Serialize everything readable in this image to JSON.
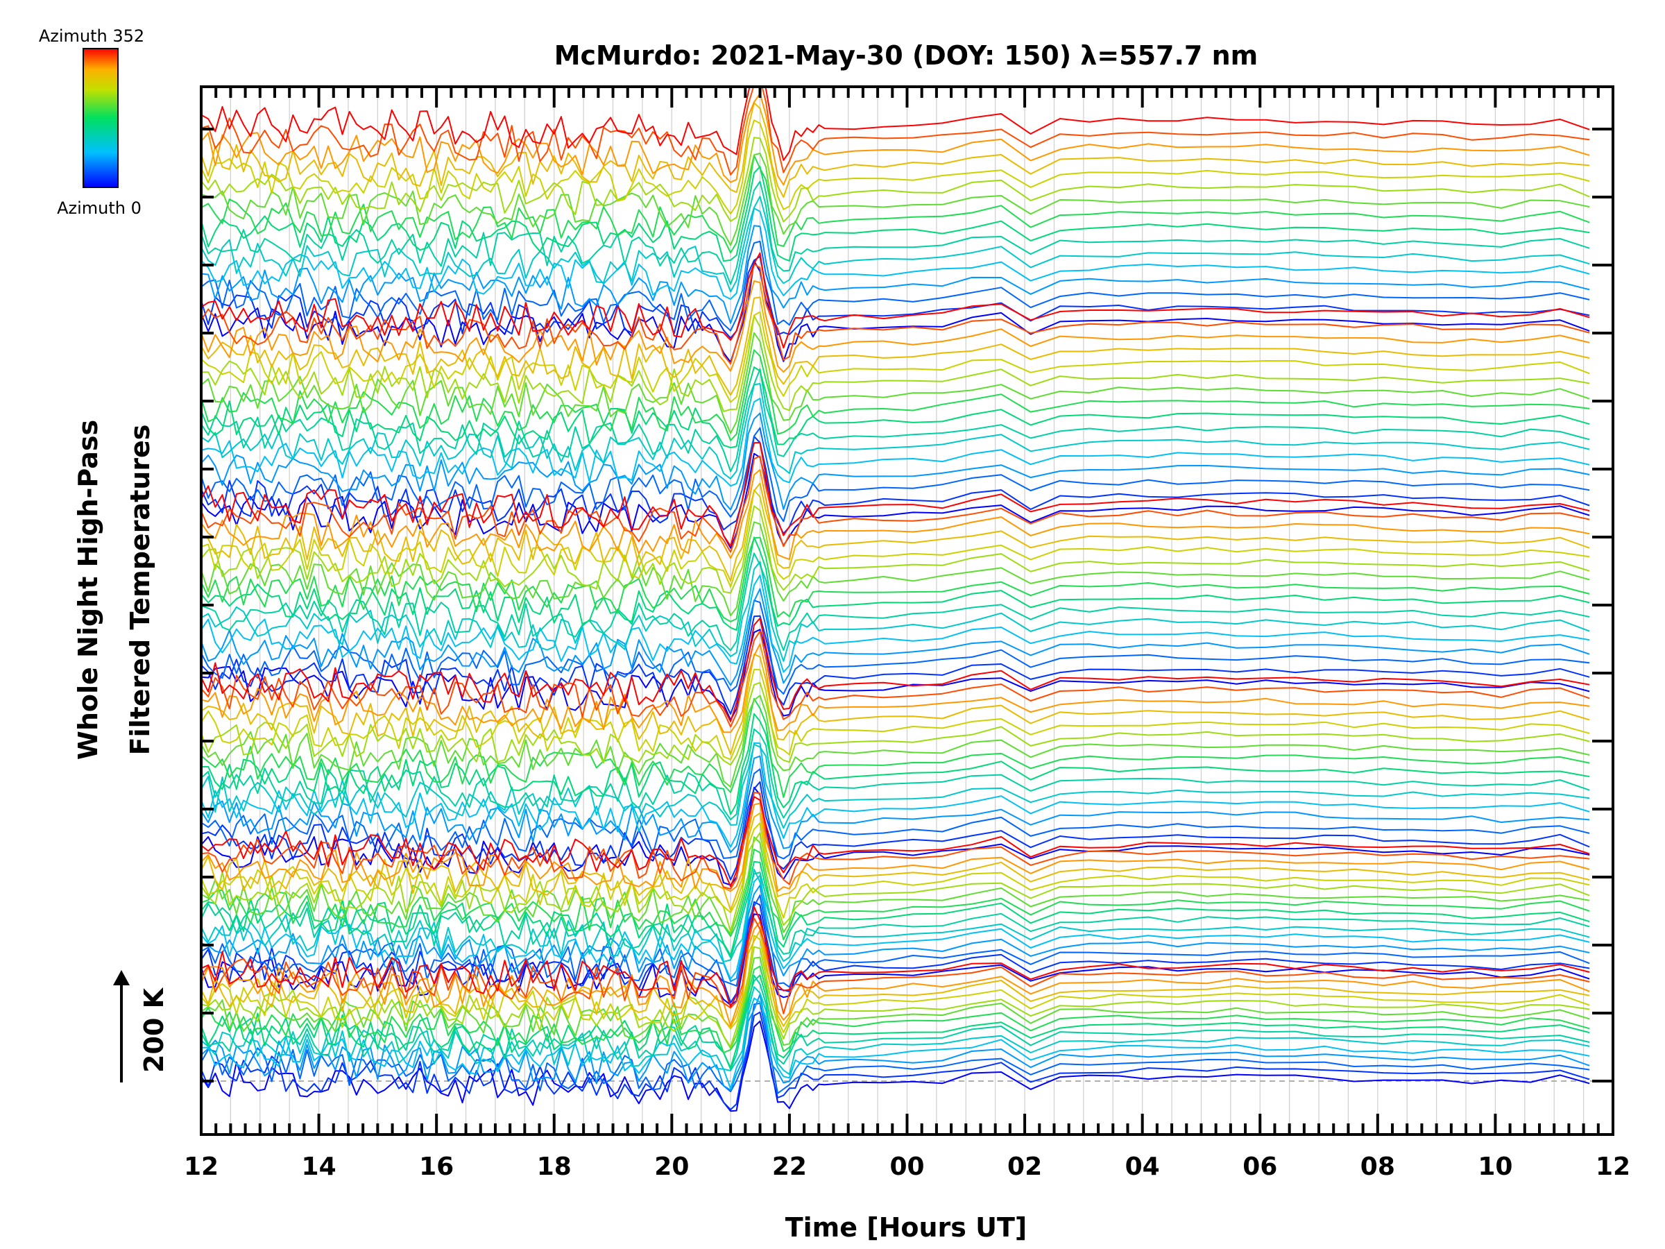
{
  "chart_data": {
    "type": "line",
    "title": "McMurdo: 2021-May-30 (DOY: 150) λ=557.7 nm",
    "xlabel": "Time [Hours UT]",
    "ylabel_line1": "Whole Night High-Pass",
    "ylabel_line2": "Filtered Temperatures",
    "scale_label": "200 K",
    "colorbar": {
      "top_label": "Azimuth 352",
      "bottom_label": "Azimuth 0",
      "azimuth_min": 0,
      "azimuth_max": 352
    },
    "x_range_hours": [
      12,
      36
    ],
    "x_ticks": [
      {
        "value": 12,
        "label": "12"
      },
      {
        "value": 14,
        "label": "14"
      },
      {
        "value": 16,
        "label": "16"
      },
      {
        "value": 18,
        "label": "18"
      },
      {
        "value": 20,
        "label": "20"
      },
      {
        "value": 22,
        "label": "22"
      },
      {
        "value": 24,
        "label": "00"
      },
      {
        "value": 26,
        "label": "02"
      },
      {
        "value": 28,
        "label": "04"
      },
      {
        "value": 30,
        "label": "06"
      },
      {
        "value": 32,
        "label": "08"
      },
      {
        "value": 34,
        "label": "10"
      },
      {
        "value": 36,
        "label": "12"
      }
    ],
    "series_description": "Stacked high-pass filtered temperature traces, one per azimuth (0 to 352 degrees), offset vertically; 6 groups of 16 azimuth traces",
    "groups": 6,
    "azimuths_per_group": 16,
    "stack_units_per_group": 1000,
    "scale_bar_kelvin": 200,
    "baseline_dashed": true,
    "colors": {
      "line_low": "#0000ff",
      "line_high": "#ff0000",
      "axis": "#000000",
      "grid": "#c8c8c8"
    }
  }
}
